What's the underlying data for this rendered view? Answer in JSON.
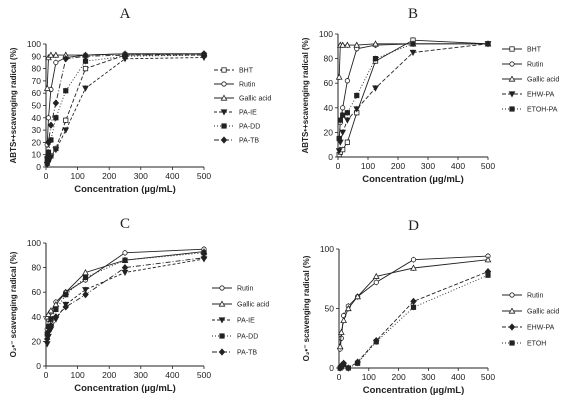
{
  "chart_data": [
    {
      "type": "line",
      "title": "A",
      "xlabel": "Concentration (µg/mL)",
      "ylabel": "ABTS•+scavenging radical  (%)",
      "xlim": [
        0,
        500
      ],
      "ylim": [
        0,
        100
      ],
      "xticks": [
        0,
        100,
        200,
        300,
        400,
        500
      ],
      "yticks": [
        0,
        10,
        20,
        30,
        40,
        50,
        60,
        70,
        80,
        90,
        100
      ],
      "legend_position": "right",
      "series": [
        {
          "name": "BHT",
          "marker": "square-open",
          "dash": "4,2",
          "x": [
            3.9,
            7.8,
            15.6,
            31.25,
            62.5,
            125,
            250,
            500
          ],
          "y": [
            3,
            6,
            9,
            15,
            38,
            80,
            91,
            91
          ]
        },
        {
          "name": "Rutin",
          "marker": "circle-open",
          "dash": "",
          "x": [
            3.9,
            7.8,
            15.6,
            31.25,
            62.5,
            125,
            250,
            500
          ],
          "y": [
            18,
            40,
            63,
            85,
            89,
            91,
            92,
            92
          ]
        },
        {
          "name": "Gallic acid",
          "marker": "triangle-open",
          "dash": "",
          "x": [
            3.9,
            7.8,
            15.6,
            31.25,
            62.5,
            125,
            250,
            500
          ],
          "y": [
            64,
            89,
            91,
            91,
            91,
            91,
            92,
            92
          ]
        },
        {
          "name": "PA-IE",
          "marker": "triangle-down",
          "dash": "3,2",
          "x": [
            3.9,
            7.8,
            15.6,
            31.25,
            62.5,
            125,
            250,
            500
          ],
          "y": [
            2,
            4,
            8,
            14,
            30,
            64,
            88,
            89
          ]
        },
        {
          "name": "PA-DD",
          "marker": "square-filled",
          "dash": "1,2",
          "x": [
            3.9,
            7.8,
            15.6,
            31.25,
            62.5,
            125,
            250,
            500
          ],
          "y": [
            6,
            12,
            22,
            40,
            62,
            86,
            90,
            91
          ]
        },
        {
          "name": "PA-TB",
          "marker": "diamond-filled",
          "dash": "5,2,1,2",
          "x": [
            3.9,
            7.8,
            15.6,
            31.25,
            62.5,
            125,
            250,
            500
          ],
          "y": [
            8,
            20,
            34,
            52,
            88,
            90,
            91,
            92
          ]
        }
      ]
    },
    {
      "type": "line",
      "title": "B",
      "xlabel": "Concentration (µg/mL)",
      "ylabel": "ABTS•+scavenging radical  (%)",
      "xlim": [
        0,
        500
      ],
      "ylim": [
        0,
        100
      ],
      "xticks": [
        0,
        100,
        200,
        300,
        400,
        500
      ],
      "yticks": [
        0,
        20,
        40,
        60,
        80,
        100
      ],
      "legend_position": "right",
      "series": [
        {
          "name": "BHT",
          "marker": "square-open",
          "dash": "",
          "x": [
            3.9,
            7.8,
            15.6,
            31.25,
            62.5,
            125,
            250,
            500
          ],
          "y": [
            2,
            4,
            6,
            12,
            36,
            78,
            95,
            92
          ]
        },
        {
          "name": "Rutin",
          "marker": "circle-open",
          "dash": "",
          "x": [
            3.9,
            7.8,
            15.6,
            31.25,
            62.5,
            125,
            250,
            500
          ],
          "y": [
            15,
            28,
            40,
            62,
            88,
            91,
            92,
            92
          ]
        },
        {
          "name": "Gallic acid",
          "marker": "triangle-open",
          "dash": "",
          "x": [
            3.9,
            7.8,
            15.6,
            31.25,
            62.5,
            125,
            250,
            500
          ],
          "y": [
            65,
            91,
            91,
            91,
            91,
            92,
            92,
            92
          ]
        },
        {
          "name": "EHW-PA",
          "marker": "triangle-down",
          "dash": "4,2",
          "x": [
            3.9,
            7.8,
            15.6,
            31.25,
            62.5,
            125,
            250,
            500
          ],
          "y": [
            5,
            12,
            20,
            30,
            39,
            56,
            85,
            92
          ]
        },
        {
          "name": "ETOH-PA",
          "marker": "square-filled",
          "dash": "1,2",
          "x": [
            3.9,
            7.8,
            15.6,
            31.25,
            62.5,
            125,
            250,
            500
          ],
          "y": [
            15,
            30,
            34,
            36,
            50,
            80,
            92,
            92
          ]
        }
      ]
    },
    {
      "type": "line",
      "title": "C",
      "xlabel": "Concentration (µg/mL)",
      "ylabel": "O₂•⁻ scavenging radical  (%)",
      "xlim": [
        0,
        500
      ],
      "ylim": [
        0,
        100
      ],
      "xticks": [
        0,
        100,
        200,
        300,
        400,
        500
      ],
      "yticks": [
        0,
        20,
        40,
        60,
        80,
        100
      ],
      "legend_position": "right",
      "series": [
        {
          "name": "Rutin",
          "marker": "circle-open",
          "dash": "",
          "x": [
            3.9,
            7.8,
            15.6,
            31.25,
            62.5,
            125,
            250,
            500
          ],
          "y": [
            30,
            38,
            44,
            52,
            60,
            70,
            92,
            95
          ]
        },
        {
          "name": "Gallic acid",
          "marker": "triangle-open",
          "dash": "",
          "x": [
            3.9,
            7.8,
            15.6,
            31.25,
            62.5,
            125,
            250,
            500
          ],
          "y": [
            40,
            42,
            45,
            50,
            60,
            76,
            86,
            93
          ]
        },
        {
          "name": "PA-IE",
          "marker": "triangle-down",
          "dash": "3,2",
          "x": [
            3.9,
            7.8,
            15.6,
            31.25,
            62.5,
            125,
            250,
            500
          ],
          "y": [
            18,
            24,
            30,
            38,
            50,
            62,
            76,
            87
          ]
        },
        {
          "name": "PA-DD",
          "marker": "square-filled",
          "dash": "1,2",
          "x": [
            3.9,
            7.8,
            15.6,
            31.25,
            62.5,
            125,
            250,
            500
          ],
          "y": [
            26,
            32,
            38,
            46,
            58,
            72,
            86,
            92
          ]
        },
        {
          "name": "PA-TB",
          "marker": "diamond-filled",
          "dash": "5,2,1,2",
          "x": [
            3.9,
            7.8,
            15.6,
            31.25,
            62.5,
            125,
            250,
            500
          ],
          "y": [
            22,
            28,
            33,
            40,
            48,
            58,
            80,
            88
          ]
        }
      ]
    },
    {
      "type": "line",
      "title": "D",
      "xlabel": "Concentration (µg/mL)",
      "ylabel": "O₂•⁻ scavenging radical  (%)",
      "xlim": [
        0,
        500
      ],
      "ylim": [
        0,
        100
      ],
      "xticks": [
        0,
        100,
        200,
        300,
        400,
        500
      ],
      "yticks": [
        0,
        50,
        100
      ],
      "legend_position": "right",
      "series": [
        {
          "name": "Rutin",
          "marker": "circle-open",
          "dash": "",
          "x": [
            3.9,
            7.8,
            15.6,
            31.25,
            62.5,
            125,
            250,
            500
          ],
          "y": [
            16,
            25,
            44,
            52,
            60,
            72,
            91,
            94
          ]
        },
        {
          "name": "Gallic acid",
          "marker": "triangle-open",
          "dash": "",
          "x": [
            3.9,
            7.8,
            15.6,
            31.25,
            62.5,
            125,
            250,
            500
          ],
          "y": [
            18,
            30,
            40,
            50,
            60,
            77,
            84,
            91
          ]
        },
        {
          "name": "EHW-PA",
          "marker": "diamond-filled",
          "dash": "4,2",
          "x": [
            3.9,
            7.8,
            15.6,
            31.25,
            62.5,
            125,
            250,
            500
          ],
          "y": [
            0,
            2,
            4,
            0,
            5,
            23,
            56,
            81
          ]
        },
        {
          "name": "ETOH",
          "marker": "square-filled",
          "dash": "1,2",
          "x": [
            3.9,
            7.8,
            15.6,
            31.25,
            62.5,
            125,
            250,
            500
          ],
          "y": [
            0,
            1,
            3,
            0,
            4,
            22,
            51,
            78
          ]
        }
      ]
    }
  ]
}
